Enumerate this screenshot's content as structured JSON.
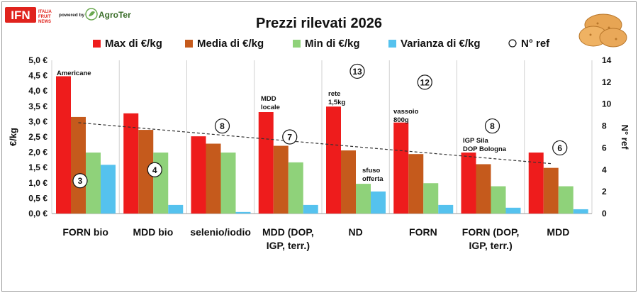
{
  "header": {
    "brand_main": "IFN",
    "brand_sub": [
      "ITALIA",
      "FRUIT",
      "NEWS"
    ],
    "powered_by": "powered by",
    "partner": "AgroTer"
  },
  "colors": {
    "max": "#ee1c1c",
    "media": "#c55a1c",
    "min": "#8fd27a",
    "varianza": "#55c2ee",
    "trend": "#333333",
    "grid": "#d0d0d0",
    "brand_red": "#e0231d"
  },
  "chart_data": {
    "type": "bar",
    "title": "Prezzi rilevati 2026",
    "ylabel": "€/kg",
    "y2label": "N° ref",
    "ylim": [
      0,
      5
    ],
    "y2lim": [
      0,
      14
    ],
    "yticks": [
      "0,0 €",
      "0,5 €",
      "1,0 €",
      "1,5 €",
      "2,0 €",
      "2,5 €",
      "3,0 €",
      "3,5 €",
      "4,0 €",
      "4,5 €",
      "5,0 €"
    ],
    "y2ticks": [
      "0",
      "2",
      "4",
      "6",
      "8",
      "10",
      "12",
      "14"
    ],
    "categories": [
      "FORN bio",
      "MDD bio",
      "selenio/iodio",
      "MDD (DOP,\nIGP, terr.)",
      "ND",
      "FORN",
      "FORN (DOP,\nIGP, terr.)",
      "MDD"
    ],
    "series": [
      {
        "name": "Max di €/kg",
        "values": [
          4.48,
          3.27,
          2.52,
          3.31,
          3.49,
          2.97,
          1.99,
          1.99
        ]
      },
      {
        "name": "Media di €/kg",
        "values": [
          3.15,
          2.73,
          2.28,
          2.21,
          2.06,
          1.94,
          1.61,
          1.49
        ]
      },
      {
        "name": "Min di €/kg",
        "values": [
          1.99,
          1.99,
          1.99,
          1.67,
          0.97,
          0.99,
          0.89,
          0.89
        ]
      },
      {
        "name": "Varianza di €/kg",
        "values": [
          1.59,
          0.28,
          0.05,
          0.28,
          0.72,
          0.28,
          0.19,
          0.14
        ]
      }
    ],
    "nref": {
      "name": "N° ref",
      "values": [
        3,
        4,
        8,
        7,
        13,
        12,
        8,
        6
      ]
    },
    "trendline": {
      "from": 3.15,
      "to": 1.49
    },
    "annotations": [
      {
        "category": 0,
        "lines": [
          "Americane"
        ]
      },
      {
        "category": 3,
        "lines": [
          "MDD",
          "locale"
        ]
      },
      {
        "category": 4,
        "lines": [
          "rete",
          "1,5kg"
        ]
      },
      {
        "category": 4,
        "lines": [
          "sfuso",
          "offerta"
        ]
      },
      {
        "category": 5,
        "lines": [
          "vassoio",
          "800g"
        ]
      },
      {
        "category": 6,
        "lines": [
          "IGP Sila",
          "DOP Bologna"
        ]
      }
    ],
    "legend_position": "top"
  }
}
